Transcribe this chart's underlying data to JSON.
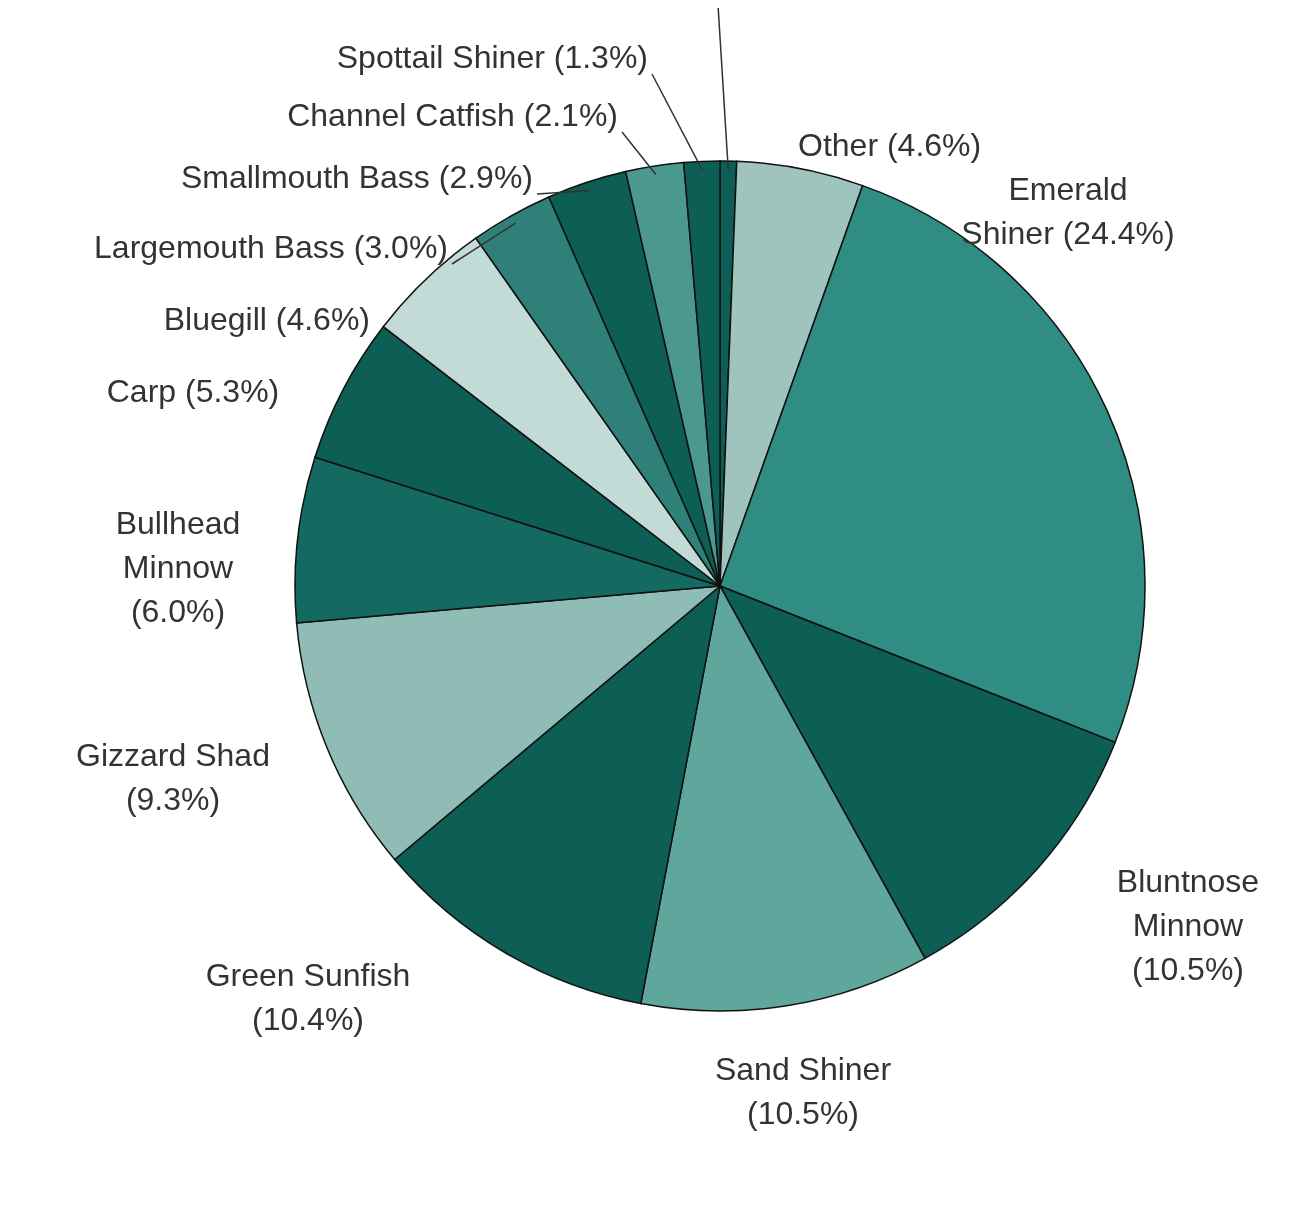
{
  "chart_data": {
    "type": "pie",
    "categories": [
      null,
      "Other",
      "Emerald Shiner",
      "Bluntnose Minnow",
      "Sand Shiner",
      "Green Sunfish",
      "Gizzard Shad",
      "Bullhead Minnow",
      "Carp",
      "Bluegill",
      "Largemouth Bass",
      "Smallmouth Bass",
      "Channel Catfish",
      "Spottail Shiner"
    ],
    "values": [
      0.6,
      4.6,
      24.4,
      10.5,
      10.5,
      10.4,
      9.3,
      6.0,
      5.3,
      4.6,
      3.0,
      2.9,
      2.1,
      1.3
    ],
    "value_labels": [
      null,
      "(4.6%)",
      "(24.4%)",
      "(10.5%)",
      "(10.5%)",
      "(10.4%)",
      "(9.3%)",
      "(6.0%)",
      "(5.3%)",
      "(4.6%)",
      "(3.0%)",
      "(2.9%)",
      "(2.1%)",
      "(1.3%)"
    ],
    "colors": [
      "#0d5e55",
      "#9fc3bd",
      "#2f8d83",
      "#0d5e55",
      "#5fa69d",
      "#0d5e55",
      "#8fbdb6",
      "#146a60",
      "#0d5e55",
      "#c2dbd7",
      "#2f8079",
      "#0d5e55",
      "#4a9890",
      "#0d5e55"
    ]
  }
}
